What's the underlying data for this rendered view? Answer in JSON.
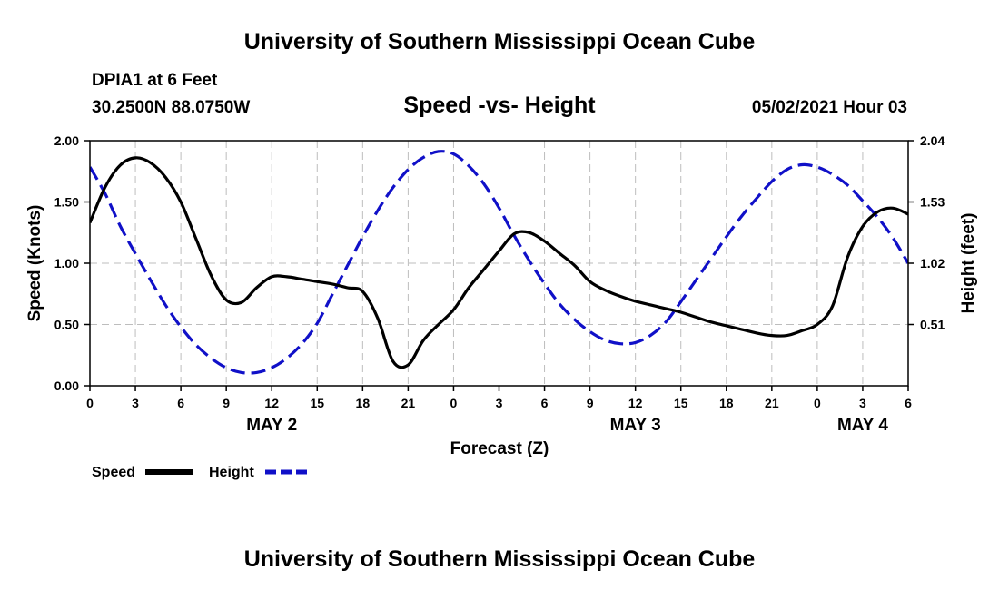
{
  "header": {
    "title_top": "University of Southern Mississippi Ocean Cube",
    "title_bottom": "University of Southern Mississippi Ocean Cube",
    "station": "DPIA1 at 6 Feet",
    "coords": "30.2500N  88.0750W",
    "datetime": "05/02/2021 Hour 03"
  },
  "colors": {
    "speed": "#000000",
    "height": "#1010c8",
    "grid": "#bdbdbd"
  },
  "chart_data": {
    "type": "line",
    "title": "Speed -vs- Height",
    "xlabel": "Forecast (Z)",
    "ylabel": "Speed (Knots)",
    "y2label": "Height (feet)",
    "x_range_hours": [
      0,
      54
    ],
    "ylim": [
      0,
      2.0
    ],
    "y2lim": [
      0,
      2.04
    ],
    "grid": true,
    "legend_position": "bottom-left",
    "x_ticks": [
      {
        "h": 0,
        "label": "0"
      },
      {
        "h": 3,
        "label": "3"
      },
      {
        "h": 6,
        "label": "6"
      },
      {
        "h": 9,
        "label": "9"
      },
      {
        "h": 12,
        "label": "12"
      },
      {
        "h": 15,
        "label": "15"
      },
      {
        "h": 18,
        "label": "18"
      },
      {
        "h": 21,
        "label": "21"
      },
      {
        "h": 24,
        "label": "0"
      },
      {
        "h": 27,
        "label": "3"
      },
      {
        "h": 30,
        "label": "6"
      },
      {
        "h": 33,
        "label": "9"
      },
      {
        "h": 36,
        "label": "12"
      },
      {
        "h": 39,
        "label": "15"
      },
      {
        "h": 42,
        "label": "18"
      },
      {
        "h": 45,
        "label": "21"
      },
      {
        "h": 48,
        "label": "0"
      },
      {
        "h": 51,
        "label": "3"
      },
      {
        "h": 54,
        "label": "6"
      }
    ],
    "day_labels": [
      {
        "h": 12,
        "label": "MAY 2"
      },
      {
        "h": 36,
        "label": "MAY 3"
      },
      {
        "h": 51,
        "label": "MAY 4"
      }
    ],
    "y_ticks": [
      {
        "v": 0.0,
        "label": "0.00"
      },
      {
        "v": 0.5,
        "label": "0.50"
      },
      {
        "v": 1.0,
        "label": "1.00"
      },
      {
        "v": 1.5,
        "label": "1.50"
      },
      {
        "v": 2.0,
        "label": "2.00"
      }
    ],
    "y2_ticks": [
      {
        "v": 0.51,
        "label": "0.51"
      },
      {
        "v": 1.02,
        "label": "1.02"
      },
      {
        "v": 1.53,
        "label": "1.53"
      },
      {
        "v": 2.04,
        "label": "2.04"
      }
    ],
    "series": [
      {
        "name": "Speed",
        "axis": "left",
        "style": "solid",
        "points": [
          [
            0,
            1.33
          ],
          [
            1,
            1.62
          ],
          [
            2,
            1.8
          ],
          [
            3,
            1.86
          ],
          [
            4,
            1.82
          ],
          [
            5,
            1.7
          ],
          [
            6,
            1.5
          ],
          [
            7,
            1.2
          ],
          [
            8,
            0.9
          ],
          [
            9,
            0.7
          ],
          [
            10,
            0.68
          ],
          [
            11,
            0.8
          ],
          [
            12,
            0.89
          ],
          [
            13,
            0.89
          ],
          [
            14,
            0.87
          ],
          [
            15,
            0.85
          ],
          [
            16,
            0.83
          ],
          [
            17,
            0.8
          ],
          [
            18,
            0.77
          ],
          [
            19,
            0.55
          ],
          [
            20,
            0.2
          ],
          [
            21,
            0.17
          ],
          [
            22,
            0.37
          ],
          [
            23,
            0.5
          ],
          [
            24,
            0.62
          ],
          [
            25,
            0.8
          ],
          [
            26,
            0.95
          ],
          [
            27,
            1.1
          ],
          [
            28,
            1.24
          ],
          [
            29,
            1.25
          ],
          [
            30,
            1.18
          ],
          [
            31,
            1.08
          ],
          [
            32,
            0.98
          ],
          [
            33,
            0.85
          ],
          [
            34,
            0.78
          ],
          [
            35,
            0.73
          ],
          [
            36,
            0.69
          ],
          [
            37,
            0.66
          ],
          [
            38,
            0.63
          ],
          [
            39,
            0.6
          ],
          [
            40,
            0.56
          ],
          [
            41,
            0.52
          ],
          [
            42,
            0.49
          ],
          [
            43,
            0.46
          ],
          [
            44,
            0.43
          ],
          [
            45,
            0.41
          ],
          [
            46,
            0.41
          ],
          [
            47,
            0.45
          ],
          [
            48,
            0.5
          ],
          [
            49,
            0.65
          ],
          [
            50,
            1.05
          ],
          [
            51,
            1.3
          ],
          [
            52,
            1.42
          ],
          [
            53,
            1.45
          ],
          [
            54,
            1.4
          ]
        ]
      },
      {
        "name": "Height",
        "axis": "right",
        "style": "dashed",
        "points": [
          [
            0,
            1.82
          ],
          [
            1,
            1.6
          ],
          [
            2,
            1.33
          ],
          [
            3,
            1.1
          ],
          [
            4,
            0.88
          ],
          [
            5,
            0.67
          ],
          [
            6,
            0.49
          ],
          [
            7,
            0.34
          ],
          [
            8,
            0.23
          ],
          [
            9,
            0.15
          ],
          [
            10,
            0.11
          ],
          [
            11,
            0.11
          ],
          [
            12,
            0.15
          ],
          [
            13,
            0.23
          ],
          [
            14,
            0.35
          ],
          [
            15,
            0.52
          ],
          [
            16,
            0.76
          ],
          [
            17,
            1.0
          ],
          [
            18,
            1.24
          ],
          [
            19,
            1.46
          ],
          [
            20,
            1.65
          ],
          [
            21,
            1.8
          ],
          [
            22,
            1.9
          ],
          [
            23,
            1.95
          ],
          [
            24,
            1.93
          ],
          [
            25,
            1.83
          ],
          [
            26,
            1.68
          ],
          [
            27,
            1.48
          ],
          [
            28,
            1.25
          ],
          [
            29,
            1.04
          ],
          [
            30,
            0.85
          ],
          [
            31,
            0.68
          ],
          [
            32,
            0.55
          ],
          [
            33,
            0.45
          ],
          [
            34,
            0.38
          ],
          [
            35,
            0.35
          ],
          [
            36,
            0.36
          ],
          [
            37,
            0.42
          ],
          [
            38,
            0.53
          ],
          [
            39,
            0.7
          ],
          [
            40,
            0.88
          ],
          [
            41,
            1.06
          ],
          [
            42,
            1.24
          ],
          [
            43,
            1.41
          ],
          [
            44,
            1.56
          ],
          [
            45,
            1.7
          ],
          [
            46,
            1.8
          ],
          [
            47,
            1.84
          ],
          [
            48,
            1.82
          ],
          [
            49,
            1.76
          ],
          [
            50,
            1.67
          ],
          [
            51,
            1.54
          ],
          [
            52,
            1.4
          ],
          [
            53,
            1.23
          ],
          [
            54,
            1.02
          ]
        ]
      }
    ]
  }
}
